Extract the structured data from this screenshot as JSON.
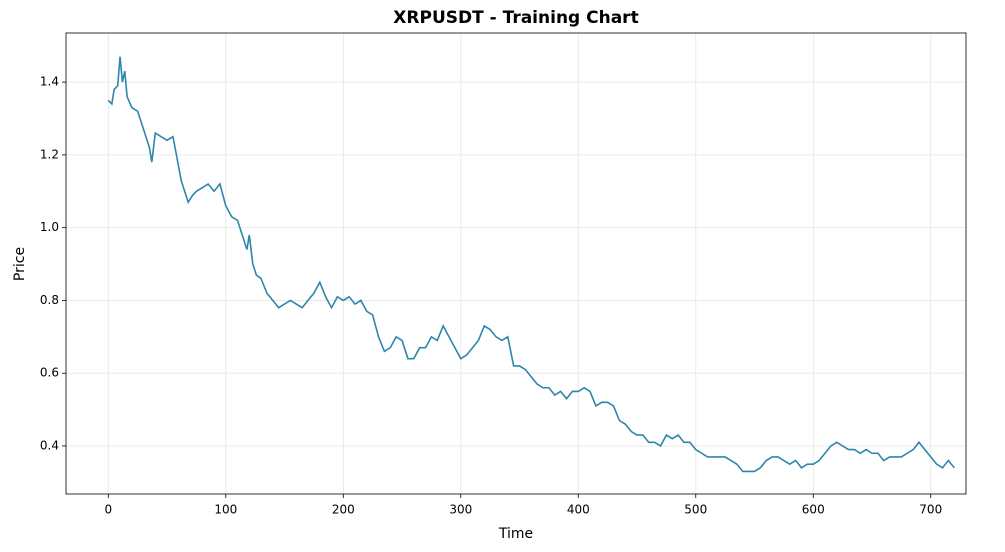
{
  "chart_data": {
    "type": "line",
    "title": "XRPUSDT - Training Chart",
    "x_label": "Time",
    "y_label": "Price",
    "x": [
      0,
      3,
      5,
      8,
      10,
      12,
      14,
      16,
      20,
      25,
      30,
      35,
      37,
      40,
      45,
      50,
      55,
      58,
      62,
      65,
      68,
      72,
      75,
      80,
      85,
      90,
      95,
      100,
      105,
      110,
      115,
      118,
      120,
      123,
      126,
      130,
      135,
      140,
      145,
      150,
      155,
      160,
      165,
      170,
      175,
      180,
      185,
      190,
      195,
      200,
      205,
      210,
      215,
      220,
      225,
      230,
      235,
      240,
      245,
      250,
      255,
      260,
      265,
      270,
      275,
      280,
      285,
      290,
      295,
      300,
      305,
      310,
      315,
      320,
      325,
      330,
      335,
      340,
      345,
      350,
      355,
      360,
      365,
      370,
      375,
      380,
      385,
      390,
      395,
      400,
      405,
      410,
      415,
      420,
      425,
      430,
      435,
      440,
      445,
      450,
      455,
      460,
      465,
      470,
      475,
      480,
      485,
      490,
      495,
      500,
      505,
      510,
      515,
      520,
      525,
      530,
      535,
      540,
      545,
      550,
      555,
      560,
      565,
      570,
      575,
      580,
      585,
      590,
      595,
      600,
      605,
      610,
      615,
      620,
      625,
      630,
      635,
      640,
      645,
      650,
      655,
      660,
      665,
      670,
      675,
      680,
      685,
      690,
      695,
      700,
      705,
      710,
      715,
      720
    ],
    "series": [
      {
        "name": "XRPUSDT",
        "color": "#2e86ab",
        "values": [
          1.35,
          1.34,
          1.38,
          1.39,
          1.47,
          1.4,
          1.43,
          1.36,
          1.33,
          1.32,
          1.27,
          1.22,
          1.18,
          1.26,
          1.25,
          1.24,
          1.25,
          1.2,
          1.13,
          1.1,
          1.07,
          1.09,
          1.1,
          1.11,
          1.12,
          1.1,
          1.12,
          1.06,
          1.03,
          1.02,
          0.97,
          0.94,
          0.98,
          0.9,
          0.87,
          0.86,
          0.82,
          0.8,
          0.78,
          0.79,
          0.8,
          0.79,
          0.78,
          0.8,
          0.82,
          0.85,
          0.81,
          0.78,
          0.81,
          0.8,
          0.81,
          0.79,
          0.8,
          0.77,
          0.76,
          0.7,
          0.66,
          0.67,
          0.7,
          0.69,
          0.64,
          0.64,
          0.67,
          0.67,
          0.7,
          0.69,
          0.73,
          0.7,
          0.67,
          0.64,
          0.65,
          0.67,
          0.69,
          0.73,
          0.72,
          0.7,
          0.69,
          0.7,
          0.62,
          0.62,
          0.61,
          0.59,
          0.57,
          0.56,
          0.56,
          0.54,
          0.55,
          0.53,
          0.55,
          0.55,
          0.56,
          0.55,
          0.51,
          0.52,
          0.52,
          0.51,
          0.47,
          0.46,
          0.44,
          0.43,
          0.43,
          0.41,
          0.41,
          0.4,
          0.43,
          0.42,
          0.43,
          0.41,
          0.41,
          0.39,
          0.38,
          0.37,
          0.37,
          0.37,
          0.37,
          0.36,
          0.35,
          0.33,
          0.33,
          0.33,
          0.34,
          0.36,
          0.37,
          0.37,
          0.36,
          0.35,
          0.36,
          0.34,
          0.35,
          0.35,
          0.36,
          0.38,
          0.4,
          0.41,
          0.4,
          0.39,
          0.39,
          0.38,
          0.39,
          0.38,
          0.38,
          0.36,
          0.37,
          0.37,
          0.37,
          0.38,
          0.39,
          0.41,
          0.39,
          0.37,
          0.35,
          0.34,
          0.36,
          0.34
        ]
      }
    ],
    "xlim": [
      -36,
      730
    ],
    "ylim": [
      0.268,
      1.535
    ],
    "xticks": [
      0,
      100,
      200,
      300,
      400,
      500,
      600,
      700
    ],
    "yticks": [
      0.4,
      0.6,
      0.8,
      {
        "value": 1,
        "label": "1.0"
      },
      1.2,
      1.4
    ],
    "grid": true
  }
}
